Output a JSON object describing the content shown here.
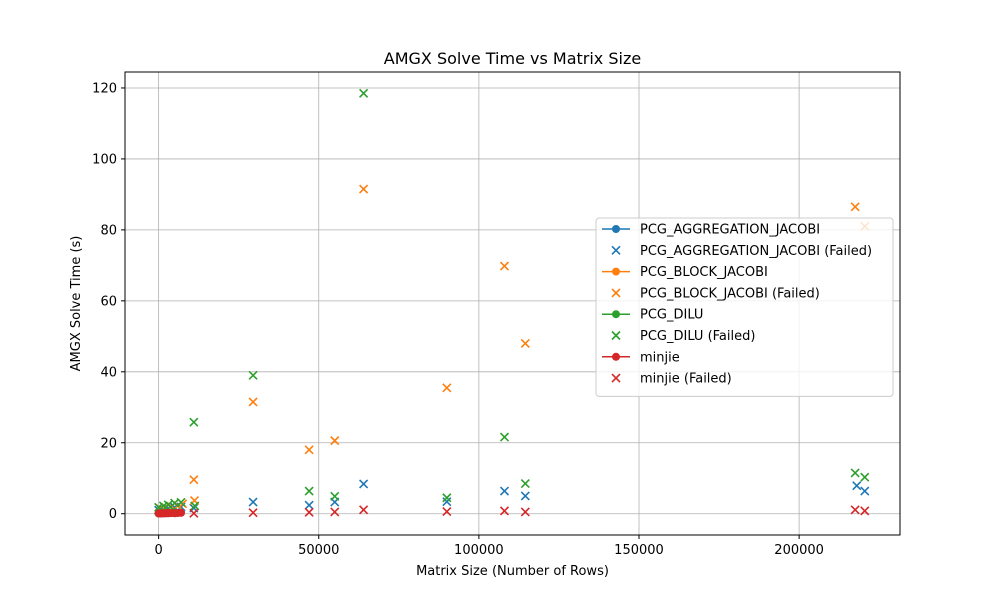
{
  "chart_data": {
    "type": "scatter",
    "title": "AMGX Solve Time vs Matrix Size",
    "xlabel": "Matrix Size (Number of Rows)",
    "ylabel": "AMGX Solve Time (s)",
    "xlim": [
      -10500,
      231500
    ],
    "ylim": [
      -6,
      124.5
    ],
    "xticks": [
      0,
      50000,
      100000,
      150000,
      200000
    ],
    "yticks": [
      0,
      20,
      40,
      60,
      80,
      100,
      120
    ],
    "grid": true,
    "legend_position": "center-right",
    "series": [
      {
        "name": "PCG_AGGREGATION_JACOBI",
        "color": "#1f77b4",
        "marker": "circle",
        "style": "line",
        "points": [
          [
            0,
            0.05
          ],
          [
            1000,
            0.08
          ],
          [
            2000,
            0.1
          ],
          [
            3000,
            0.12
          ],
          [
            5000,
            0.15
          ]
        ]
      },
      {
        "name": "PCG_AGGREGATION_JACOBI (Failed)",
        "color": "#1f77b4",
        "marker": "x",
        "style": "scatter",
        "points": [
          [
            0,
            1.0
          ],
          [
            1500,
            1.2
          ],
          [
            3000,
            1.5
          ],
          [
            5000,
            1.8
          ],
          [
            7000,
            1.9
          ],
          [
            11000,
            1.6
          ],
          [
            29500,
            3.3
          ],
          [
            47000,
            2.4
          ],
          [
            55000,
            3.3
          ],
          [
            64000,
            8.4
          ],
          [
            90000,
            3.4
          ],
          [
            108000,
            6.4
          ],
          [
            114500,
            5.0
          ],
          [
            218000,
            7.9
          ],
          [
            220500,
            6.4
          ]
        ]
      },
      {
        "name": "PCG_BLOCK_JACOBI",
        "color": "#ff7f0e",
        "marker": "circle",
        "style": "line",
        "points": [
          [
            0,
            0.1
          ],
          [
            1000,
            0.12
          ],
          [
            2000,
            0.15
          ],
          [
            3000,
            0.2
          ],
          [
            5000,
            0.25
          ]
        ]
      },
      {
        "name": "PCG_BLOCK_JACOBI (Failed)",
        "color": "#ff7f0e",
        "marker": "x",
        "style": "scatter",
        "points": [
          [
            500,
            1.5
          ],
          [
            2000,
            1.8
          ],
          [
            4000,
            2.0
          ],
          [
            6000,
            2.3
          ],
          [
            7500,
            2.8
          ],
          [
            11000,
            9.6
          ],
          [
            11200,
            3.7
          ],
          [
            29500,
            31.5
          ],
          [
            47000,
            18.0
          ],
          [
            55000,
            20.6
          ],
          [
            64000,
            91.5
          ],
          [
            90000,
            35.5
          ],
          [
            108000,
            69.8
          ],
          [
            114500,
            48.0
          ],
          [
            217500,
            86.5
          ],
          [
            220500,
            81.0
          ]
        ]
      },
      {
        "name": "PCG_DILU",
        "color": "#2ca02c",
        "marker": "circle",
        "style": "line",
        "points": [
          [
            0,
            0.15
          ],
          [
            1000,
            0.2
          ],
          [
            2000,
            0.3
          ],
          [
            3000,
            0.4
          ],
          [
            5000,
            0.5
          ]
        ]
      },
      {
        "name": "PCG_DILU (Failed)",
        "color": "#2ca02c",
        "marker": "x",
        "style": "scatter",
        "points": [
          [
            0,
            1.8
          ],
          [
            1500,
            2.2
          ],
          [
            3000,
            2.5
          ],
          [
            5000,
            3.0
          ],
          [
            7000,
            3.2
          ],
          [
            11000,
            25.8
          ],
          [
            11300,
            2.2
          ],
          [
            29500,
            39.0
          ],
          [
            47000,
            6.4
          ],
          [
            55000,
            4.9
          ],
          [
            64000,
            118.5
          ],
          [
            90000,
            4.5
          ],
          [
            108000,
            21.6
          ],
          [
            114500,
            8.5
          ],
          [
            217500,
            11.5
          ],
          [
            220500,
            10.3
          ]
        ]
      },
      {
        "name": "minjie",
        "color": "#d62728",
        "marker": "circle",
        "style": "line",
        "points": [
          [
            0,
            0.1
          ],
          [
            500,
            0.05
          ],
          [
            1000,
            0.12
          ],
          [
            1500,
            0.1
          ],
          [
            2000,
            0.15
          ],
          [
            2500,
            0.12
          ],
          [
            3000,
            0.2
          ],
          [
            3500,
            0.15
          ],
          [
            4000,
            0.18
          ],
          [
            5000,
            0.12
          ],
          [
            6000,
            0.2
          ],
          [
            7000,
            0.25
          ]
        ]
      },
      {
        "name": "minjie (Failed)",
        "color": "#d62728",
        "marker": "x",
        "style": "scatter",
        "points": [
          [
            11000,
            0.1
          ],
          [
            29500,
            0.3
          ],
          [
            47000,
            0.4
          ],
          [
            55000,
            0.5
          ],
          [
            64000,
            1.1
          ],
          [
            90000,
            0.6
          ],
          [
            108000,
            0.8
          ],
          [
            114500,
            0.5
          ],
          [
            217500,
            1.1
          ],
          [
            220500,
            0.8
          ]
        ]
      }
    ]
  }
}
